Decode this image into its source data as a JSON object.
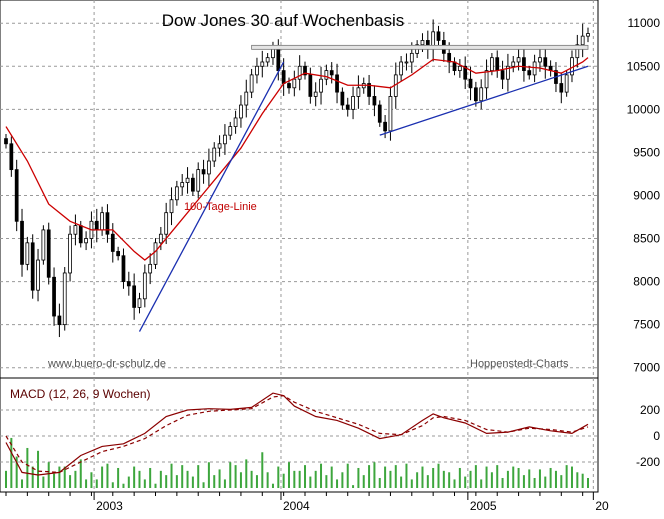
{
  "chart_data": [
    {
      "type": "candlestick",
      "title": "Dow Jones 30 auf Wochenbasis",
      "ylim": [
        6950,
        11200
      ],
      "yticks": [
        7000,
        7500,
        8000,
        8500,
        9000,
        9500,
        10000,
        10500,
        11000
      ],
      "xticks": [
        "2003",
        "2004",
        "2005",
        "20"
      ],
      "grid": true,
      "gridline_style": "dashed",
      "annotations": {
        "ma_label": "100-Tage-Linie",
        "source_left": "www.buero-dr-schulz.de",
        "source_right": "Hoppenstedt-Charts"
      },
      "series": [
        {
          "kind": "close",
          "values": [
            9600,
            9300,
            8700,
            8200,
            8450,
            7900,
            8250,
            8600,
            8050,
            7600,
            7500,
            8100,
            8550,
            8650,
            8450,
            8500,
            8700,
            8600,
            8800,
            8550,
            8350,
            8300,
            8000,
            7950,
            7700,
            7800,
            8100,
            8200,
            8450,
            8550,
            8800,
            8950,
            9100,
            9150,
            9200,
            9050,
            9300,
            9250,
            9400,
            9550,
            9600,
            9700,
            9800,
            9900,
            10050,
            10200,
            10400,
            10500,
            10550,
            10600,
            10700,
            10450,
            10300,
            10250,
            10350,
            10500,
            10400,
            10150,
            10200,
            10350,
            10450,
            10400,
            10200,
            10050,
            10000,
            10150,
            10250,
            10300,
            10150,
            10050,
            9850,
            9750,
            10150,
            10400,
            10550,
            10550,
            10650,
            10750,
            10800,
            10700,
            10900,
            10800,
            10650,
            10550,
            10450,
            10500,
            10350,
            10250,
            10100,
            10250,
            10450,
            10600,
            10450,
            10350,
            10500,
            10550,
            10600,
            10450,
            10400,
            10550,
            10600,
            10500,
            10450,
            10300,
            10200,
            10400,
            10600,
            10750,
            10850,
            10880
          ]
        },
        {
          "kind": "line",
          "name": "100-Tage-Linie",
          "color": "#cc0000",
          "x": [
            0,
            4,
            8,
            12,
            16,
            20,
            24,
            26,
            28,
            32,
            36,
            40,
            44,
            48,
            52,
            56,
            60,
            64,
            68,
            72,
            76,
            80,
            84,
            88,
            92,
            96,
            100,
            104,
            108,
            109
          ],
          "values": [
            9800,
            9400,
            8900,
            8700,
            8600,
            8600,
            8350,
            8250,
            8350,
            8650,
            8950,
            9250,
            9550,
            9950,
            10300,
            10420,
            10380,
            10280,
            10280,
            10250,
            10400,
            10580,
            10550,
            10420,
            10450,
            10500,
            10480,
            10420,
            10550,
            10600
          ]
        },
        {
          "kind": "trendline",
          "color": "#1a2fb0",
          "points": [
            [
              25,
              7420
            ],
            [
              52,
              10550
            ]
          ]
        },
        {
          "kind": "trendline",
          "color": "#1a2fb0",
          "points": [
            [
              70,
              9700
            ],
            [
              109,
              10500
            ]
          ]
        },
        {
          "kind": "hline",
          "color": "#888888",
          "value": 10720,
          "x": [
            46,
            109
          ]
        }
      ]
    },
    {
      "type": "macd",
      "title": "MACD (12, 26, 9 Wochen)",
      "ylim": [
        -400,
        400
      ],
      "yticks": [
        -200,
        0,
        200
      ],
      "ytick_labels": [
        "-200",
        "0",
        "200"
      ],
      "series": [
        {
          "kind": "line",
          "color": "#8b0000",
          "x": [
            0,
            3,
            6,
            10,
            14,
            18,
            22,
            26,
            30,
            34,
            38,
            42,
            46,
            50,
            52,
            54,
            58,
            62,
            66,
            70,
            74,
            78,
            80,
            82,
            86,
            90,
            94,
            98,
            102,
            106,
            109
          ],
          "values": [
            -50,
            -280,
            -300,
            -280,
            -150,
            -80,
            -60,
            20,
            150,
            200,
            210,
            205,
            220,
            330,
            310,
            230,
            150,
            120,
            60,
            -20,
            10,
            120,
            170,
            140,
            100,
            20,
            30,
            70,
            40,
            20,
            90
          ]
        },
        {
          "kind": "signal",
          "color": "#8b0000",
          "x": [
            0,
            3,
            6,
            10,
            14,
            18,
            22,
            26,
            30,
            34,
            38,
            42,
            46,
            50,
            52,
            54,
            58,
            62,
            66,
            70,
            74,
            78,
            80,
            82,
            86,
            90,
            94,
            98,
            102,
            106,
            109
          ],
          "values": [
            0,
            -200,
            -270,
            -280,
            -200,
            -120,
            -80,
            -20,
            80,
            160,
            190,
            200,
            210,
            300,
            310,
            260,
            190,
            140,
            90,
            20,
            10,
            80,
            140,
            150,
            120,
            50,
            30,
            60,
            50,
            30,
            70
          ]
        },
        {
          "kind": "histogram",
          "color": "#3da63d",
          "values": [
            120,
            -350,
            -220,
            60,
            -280,
            150,
            -260,
            80,
            180,
            -100,
            150,
            -150,
            90,
            120,
            200,
            -60,
            110,
            60,
            -150,
            170,
            -40,
            140,
            30,
            -80,
            150,
            -120,
            60,
            140,
            -30,
            120,
            90,
            170,
            -90,
            160,
            120,
            80,
            160,
            -40,
            180,
            90,
            130,
            -60,
            180,
            160,
            110,
            200,
            120,
            90,
            250,
            110,
            -30,
            150,
            100,
            180,
            -120,
            120,
            160,
            -80,
            120,
            170,
            90,
            150,
            -60,
            110,
            170,
            -20,
            140,
            90,
            160,
            -180,
            70,
            150,
            120,
            160,
            80,
            170,
            60,
            110,
            150,
            90,
            140,
            170,
            120,
            110,
            60,
            140,
            80,
            120,
            160,
            60,
            150,
            110,
            160,
            70,
            120,
            150,
            140,
            90,
            130,
            70,
            130,
            80,
            140,
            120,
            90,
            160,
            150,
            110,
            100,
            70
          ]
        }
      ]
    }
  ]
}
